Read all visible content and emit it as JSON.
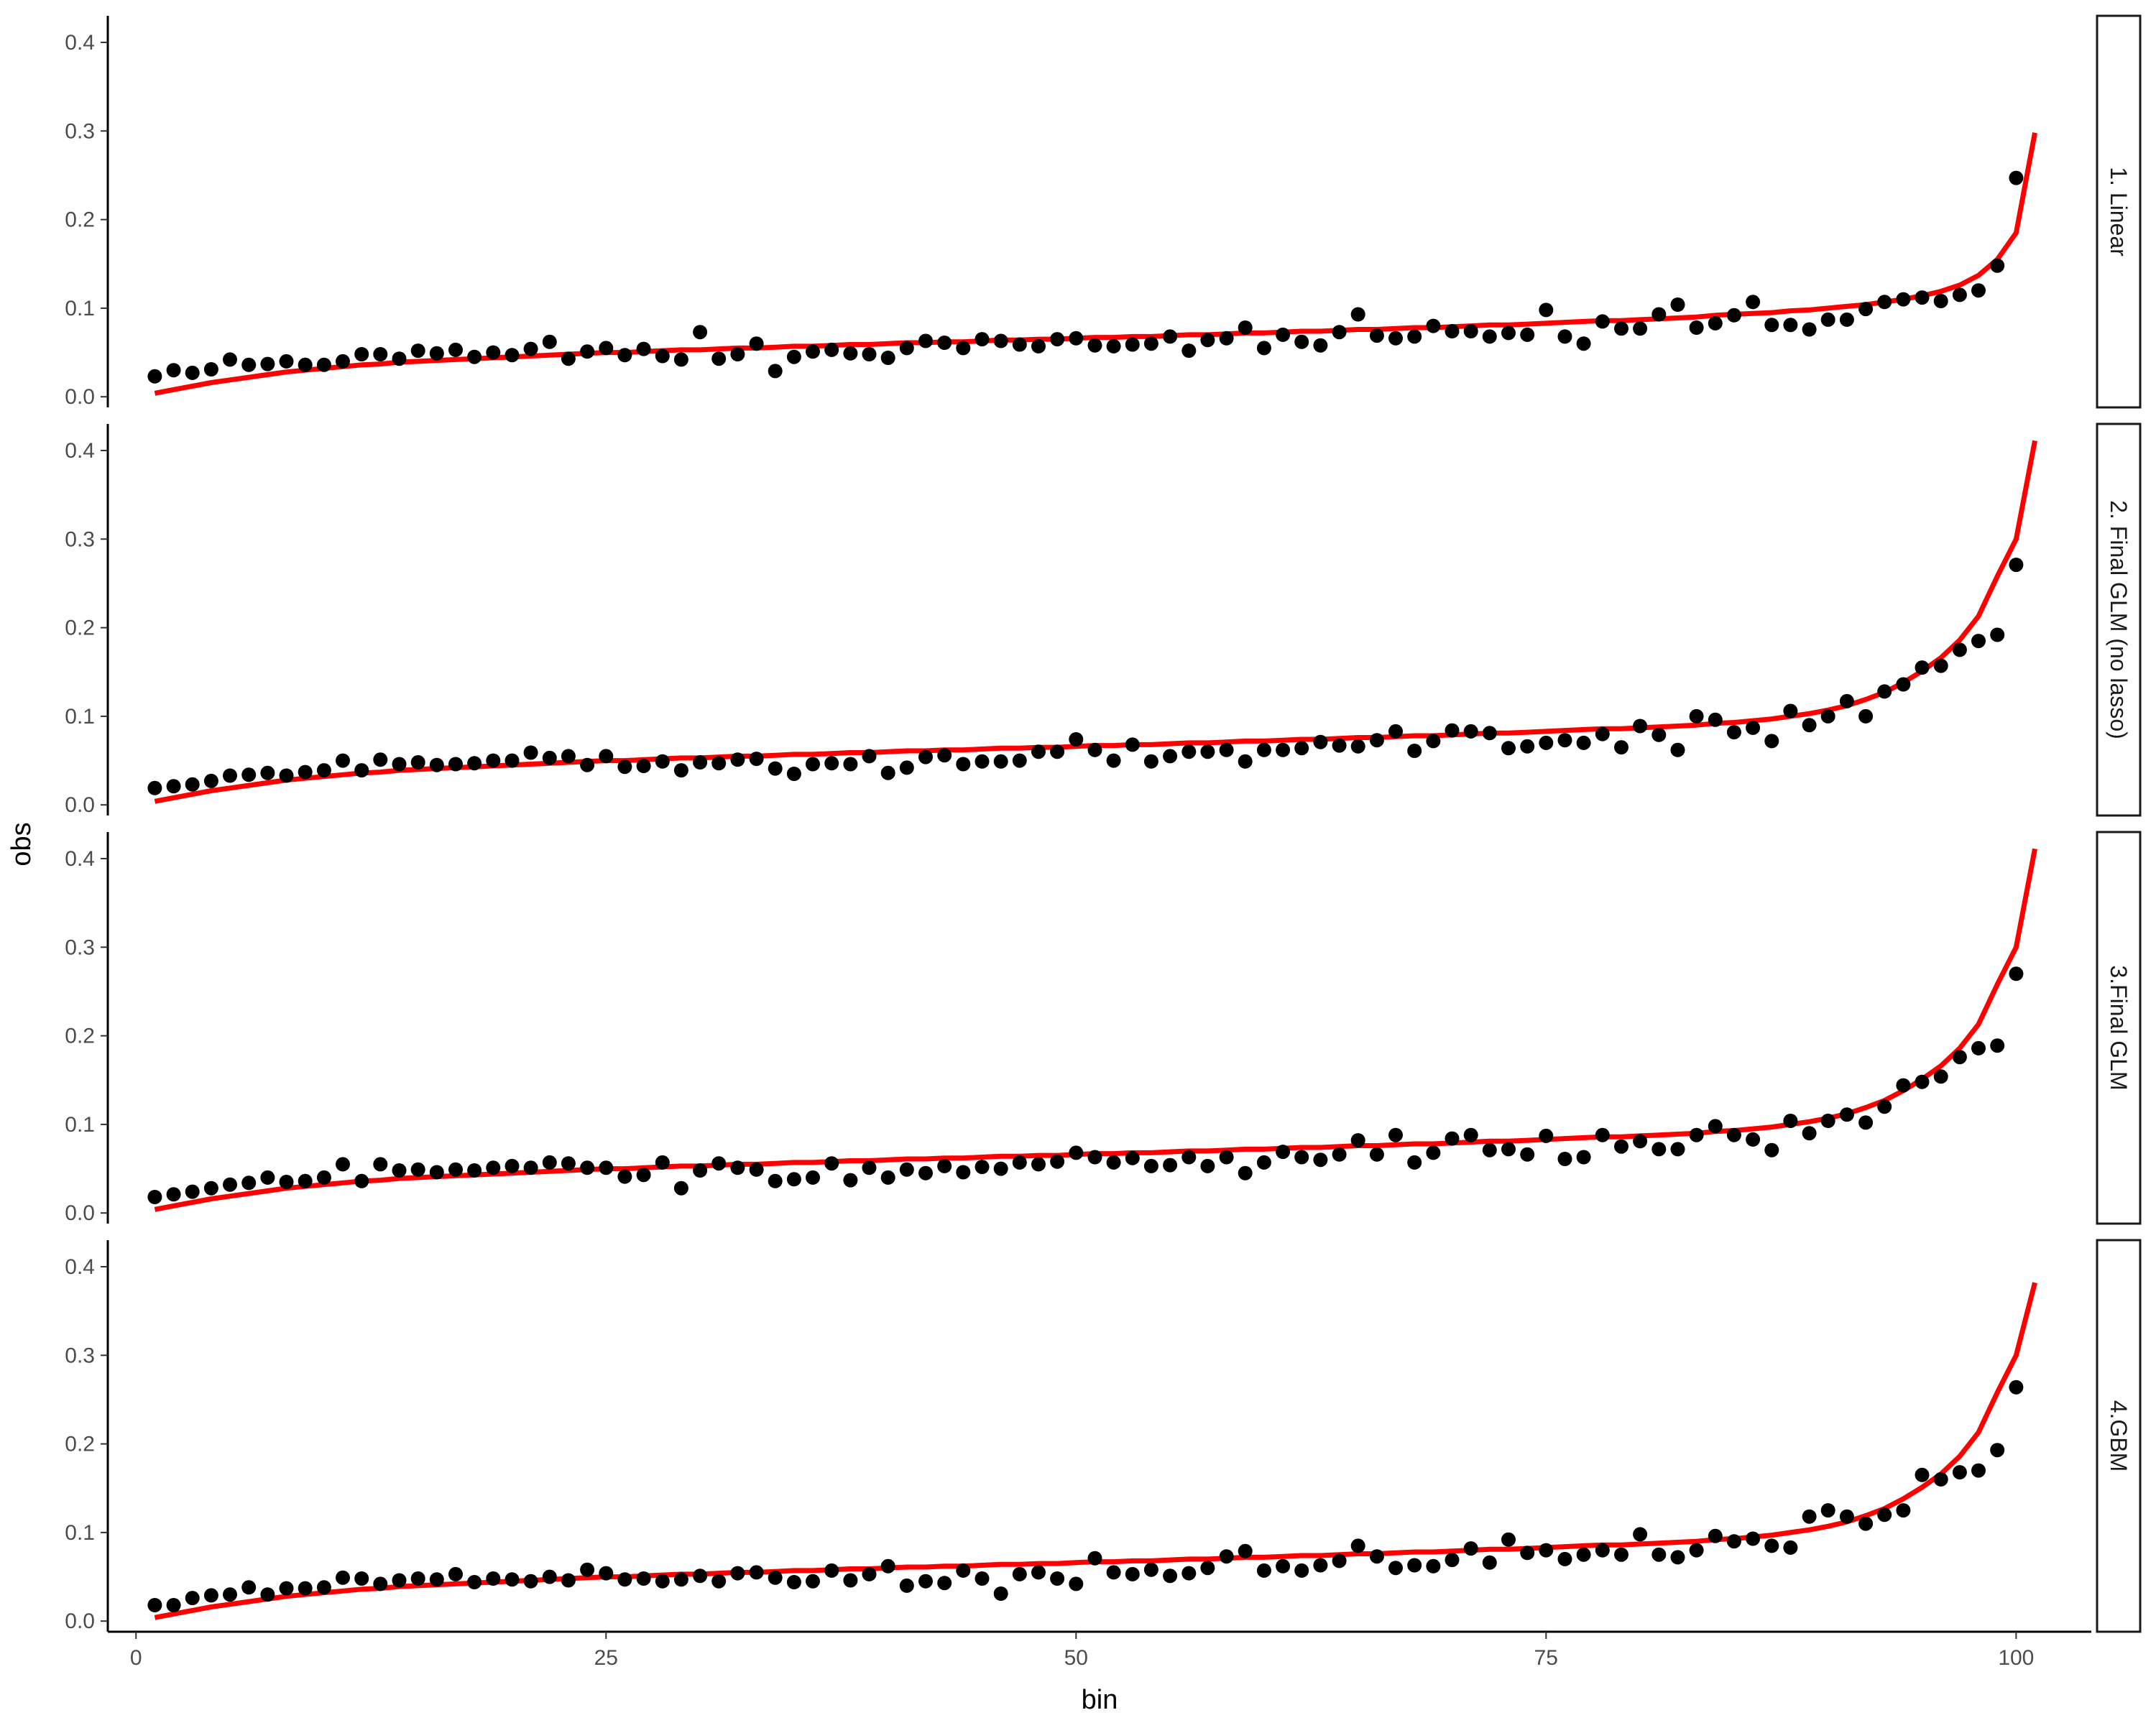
{
  "chart_data": {
    "type": "scatter",
    "xlabel": "bin",
    "ylabel": "obs",
    "xlim": [
      -1.5,
      104.0
    ],
    "ylim": [
      -0.012,
      0.43
    ],
    "x_ticks": [
      "0",
      "25",
      "50",
      "75",
      "100"
    ],
    "y_ticks": [
      "0.0",
      "0.1",
      "0.2",
      "0.3",
      "0.4"
    ],
    "colors": {
      "points": "#000000",
      "line": "#ff0000",
      "axis": "#000000",
      "tick_text": "#4d4d4d"
    },
    "panels": [
      {
        "label": "1. Linear",
        "obs": [
          0.023,
          0.03,
          0.027,
          0.031,
          0.042,
          0.036,
          0.037,
          0.04,
          0.036,
          0.036,
          0.04,
          0.048,
          0.048,
          0.043,
          0.052,
          0.049,
          0.053,
          0.045,
          0.05,
          0.047,
          0.054,
          0.062,
          0.043,
          0.051,
          0.055,
          0.047,
          0.054,
          0.046,
          0.042,
          0.073,
          0.043,
          0.048,
          0.06,
          0.029,
          0.045,
          0.051,
          0.053,
          0.049,
          0.048,
          0.044,
          0.055,
          0.063,
          0.061,
          0.055,
          0.065,
          0.063,
          0.059,
          0.057,
          0.065,
          0.066,
          0.058,
          0.057,
          0.059,
          0.06,
          0.068,
          0.052,
          0.064,
          0.066,
          0.078,
          0.055,
          0.07,
          0.062,
          0.058,
          0.073,
          0.093,
          0.069,
          0.066,
          0.068,
          0.08,
          0.074,
          0.074,
          0.068,
          0.072,
          0.07,
          0.098,
          0.068,
          0.06,
          0.085,
          0.077,
          0.077,
          0.093,
          0.104,
          0.078,
          0.083,
          0.092,
          0.107,
          0.081,
          0.081,
          0.076,
          0.087,
          0.087,
          0.099,
          0.107,
          0.11,
          0.112,
          0.108,
          0.115,
          0.12,
          0.148,
          0.247
        ],
        "fit": [
          0.004,
          0.008,
          0.012,
          0.016,
          0.019,
          0.022,
          0.025,
          0.028,
          0.03,
          0.032,
          0.034,
          0.036,
          0.037,
          0.039,
          0.04,
          0.041,
          0.042,
          0.043,
          0.044,
          0.045,
          0.046,
          0.047,
          0.048,
          0.049,
          0.05,
          0.05,
          0.051,
          0.052,
          0.053,
          0.053,
          0.054,
          0.055,
          0.055,
          0.056,
          0.057,
          0.057,
          0.058,
          0.059,
          0.059,
          0.06,
          0.061,
          0.061,
          0.062,
          0.062,
          0.063,
          0.064,
          0.064,
          0.065,
          0.065,
          0.066,
          0.067,
          0.067,
          0.068,
          0.068,
          0.069,
          0.07,
          0.07,
          0.071,
          0.072,
          0.072,
          0.073,
          0.074,
          0.074,
          0.075,
          0.076,
          0.076,
          0.077,
          0.078,
          0.078,
          0.079,
          0.08,
          0.081,
          0.081,
          0.082,
          0.083,
          0.084,
          0.085,
          0.086,
          0.086,
          0.087,
          0.088,
          0.089,
          0.09,
          0.092,
          0.093,
          0.094,
          0.095,
          0.097,
          0.098,
          0.1,
          0.102,
          0.104,
          0.107,
          0.11,
          0.114,
          0.119,
          0.126,
          0.137,
          0.155,
          0.185,
          0.298
        ]
      },
      {
        "label": "2. Final GLM (no lasso)",
        "obs": [
          0.019,
          0.021,
          0.023,
          0.027,
          0.033,
          0.034,
          0.036,
          0.033,
          0.037,
          0.039,
          0.05,
          0.039,
          0.051,
          0.046,
          0.048,
          0.045,
          0.046,
          0.047,
          0.05,
          0.05,
          0.059,
          0.053,
          0.055,
          0.045,
          0.055,
          0.043,
          0.044,
          0.049,
          0.039,
          0.048,
          0.047,
          0.051,
          0.052,
          0.041,
          0.035,
          0.046,
          0.047,
          0.046,
          0.055,
          0.036,
          0.042,
          0.054,
          0.056,
          0.046,
          0.049,
          0.049,
          0.05,
          0.06,
          0.06,
          0.074,
          0.062,
          0.05,
          0.068,
          0.049,
          0.055,
          0.06,
          0.06,
          0.062,
          0.049,
          0.062,
          0.062,
          0.064,
          0.071,
          0.067,
          0.066,
          0.073,
          0.083,
          0.061,
          0.072,
          0.084,
          0.083,
          0.081,
          0.064,
          0.066,
          0.07,
          0.073,
          0.07,
          0.08,
          0.065,
          0.089,
          0.079,
          0.062,
          0.1,
          0.096,
          0.082,
          0.087,
          0.072,
          0.106,
          0.09,
          0.1,
          0.117,
          0.1,
          0.128,
          0.136,
          0.155,
          0.157,
          0.175,
          0.185,
          0.192,
          0.271
        ],
        "fit": [
          0.004,
          0.008,
          0.012,
          0.016,
          0.019,
          0.022,
          0.025,
          0.028,
          0.03,
          0.032,
          0.034,
          0.036,
          0.037,
          0.039,
          0.04,
          0.041,
          0.042,
          0.043,
          0.044,
          0.045,
          0.046,
          0.047,
          0.048,
          0.049,
          0.05,
          0.05,
          0.051,
          0.052,
          0.053,
          0.053,
          0.054,
          0.055,
          0.055,
          0.056,
          0.057,
          0.057,
          0.058,
          0.059,
          0.059,
          0.06,
          0.061,
          0.061,
          0.062,
          0.062,
          0.063,
          0.064,
          0.064,
          0.065,
          0.065,
          0.066,
          0.067,
          0.067,
          0.068,
          0.068,
          0.069,
          0.07,
          0.07,
          0.071,
          0.072,
          0.072,
          0.073,
          0.074,
          0.074,
          0.075,
          0.076,
          0.076,
          0.077,
          0.078,
          0.078,
          0.079,
          0.08,
          0.081,
          0.081,
          0.082,
          0.083,
          0.084,
          0.085,
          0.086,
          0.086,
          0.087,
          0.088,
          0.089,
          0.09,
          0.092,
          0.093,
          0.095,
          0.097,
          0.1,
          0.103,
          0.107,
          0.112,
          0.119,
          0.127,
          0.138,
          0.151,
          0.166,
          0.186,
          0.213,
          0.258,
          0.3,
          0.411
        ]
      },
      {
        "label": "3.Final GLM",
        "obs": [
          0.018,
          0.021,
          0.024,
          0.028,
          0.032,
          0.034,
          0.04,
          0.035,
          0.036,
          0.04,
          0.055,
          0.036,
          0.055,
          0.048,
          0.049,
          0.046,
          0.049,
          0.048,
          0.051,
          0.053,
          0.051,
          0.057,
          0.056,
          0.051,
          0.051,
          0.041,
          0.043,
          0.057,
          0.028,
          0.048,
          0.056,
          0.051,
          0.049,
          0.036,
          0.038,
          0.04,
          0.056,
          0.037,
          0.051,
          0.04,
          0.049,
          0.045,
          0.053,
          0.046,
          0.052,
          0.05,
          0.057,
          0.055,
          0.058,
          0.068,
          0.063,
          0.057,
          0.062,
          0.053,
          0.054,
          0.063,
          0.053,
          0.063,
          0.045,
          0.057,
          0.069,
          0.063,
          0.06,
          0.066,
          0.082,
          0.066,
          0.088,
          0.057,
          0.068,
          0.084,
          0.088,
          0.071,
          0.072,
          0.066,
          0.087,
          0.061,
          0.063,
          0.088,
          0.075,
          0.081,
          0.072,
          0.072,
          0.088,
          0.098,
          0.088,
          0.083,
          0.071,
          0.104,
          0.09,
          0.104,
          0.111,
          0.102,
          0.12,
          0.144,
          0.148,
          0.154,
          0.176,
          0.186,
          0.189,
          0.27
        ],
        "fit": [
          0.004,
          0.008,
          0.012,
          0.016,
          0.019,
          0.022,
          0.025,
          0.028,
          0.03,
          0.032,
          0.034,
          0.036,
          0.037,
          0.039,
          0.04,
          0.041,
          0.042,
          0.043,
          0.044,
          0.045,
          0.046,
          0.047,
          0.048,
          0.049,
          0.05,
          0.05,
          0.051,
          0.052,
          0.053,
          0.053,
          0.054,
          0.055,
          0.055,
          0.056,
          0.057,
          0.057,
          0.058,
          0.059,
          0.059,
          0.06,
          0.061,
          0.061,
          0.062,
          0.062,
          0.063,
          0.064,
          0.064,
          0.065,
          0.065,
          0.066,
          0.067,
          0.067,
          0.068,
          0.068,
          0.069,
          0.07,
          0.07,
          0.071,
          0.072,
          0.072,
          0.073,
          0.074,
          0.074,
          0.075,
          0.076,
          0.076,
          0.077,
          0.078,
          0.078,
          0.079,
          0.08,
          0.081,
          0.081,
          0.082,
          0.083,
          0.084,
          0.085,
          0.086,
          0.086,
          0.087,
          0.088,
          0.089,
          0.09,
          0.092,
          0.093,
          0.095,
          0.097,
          0.1,
          0.103,
          0.107,
          0.112,
          0.119,
          0.127,
          0.138,
          0.151,
          0.166,
          0.186,
          0.213,
          0.258,
          0.3,
          0.411
        ]
      },
      {
        "label": "4.GBM",
        "obs": [
          0.018,
          0.018,
          0.026,
          0.029,
          0.03,
          0.038,
          0.03,
          0.037,
          0.037,
          0.038,
          0.049,
          0.048,
          0.042,
          0.046,
          0.048,
          0.047,
          0.053,
          0.044,
          0.048,
          0.047,
          0.045,
          0.05,
          0.046,
          0.058,
          0.054,
          0.047,
          0.048,
          0.045,
          0.047,
          0.051,
          0.045,
          0.054,
          0.055,
          0.049,
          0.044,
          0.045,
          0.057,
          0.046,
          0.053,
          0.062,
          0.04,
          0.045,
          0.043,
          0.057,
          0.048,
          0.031,
          0.053,
          0.055,
          0.048,
          0.042,
          0.071,
          0.055,
          0.053,
          0.058,
          0.051,
          0.054,
          0.06,
          0.073,
          0.079,
          0.057,
          0.062,
          0.057,
          0.063,
          0.068,
          0.085,
          0.073,
          0.06,
          0.063,
          0.062,
          0.069,
          0.082,
          0.066,
          0.092,
          0.077,
          0.08,
          0.07,
          0.075,
          0.08,
          0.075,
          0.098,
          0.075,
          0.072,
          0.08,
          0.096,
          0.09,
          0.093,
          0.085,
          0.083,
          0.118,
          0.125,
          0.118,
          0.11,
          0.12,
          0.125,
          0.165,
          0.16,
          0.168,
          0.17,
          0.193,
          0.264
        ],
        "fit": [
          0.004,
          0.008,
          0.012,
          0.016,
          0.019,
          0.022,
          0.025,
          0.028,
          0.03,
          0.032,
          0.034,
          0.036,
          0.037,
          0.039,
          0.04,
          0.041,
          0.042,
          0.043,
          0.044,
          0.045,
          0.046,
          0.047,
          0.048,
          0.049,
          0.05,
          0.05,
          0.051,
          0.052,
          0.053,
          0.053,
          0.054,
          0.055,
          0.055,
          0.056,
          0.057,
          0.057,
          0.058,
          0.059,
          0.059,
          0.06,
          0.061,
          0.061,
          0.062,
          0.062,
          0.063,
          0.064,
          0.064,
          0.065,
          0.065,
          0.066,
          0.067,
          0.067,
          0.068,
          0.068,
          0.069,
          0.07,
          0.07,
          0.071,
          0.072,
          0.072,
          0.073,
          0.074,
          0.074,
          0.075,
          0.076,
          0.076,
          0.077,
          0.078,
          0.078,
          0.079,
          0.08,
          0.081,
          0.081,
          0.082,
          0.083,
          0.084,
          0.085,
          0.086,
          0.086,
          0.087,
          0.088,
          0.089,
          0.09,
          0.092,
          0.093,
          0.095,
          0.097,
          0.1,
          0.103,
          0.107,
          0.112,
          0.119,
          0.127,
          0.138,
          0.151,
          0.166,
          0.186,
          0.213,
          0.258,
          0.3,
          0.382
        ]
      }
    ]
  }
}
